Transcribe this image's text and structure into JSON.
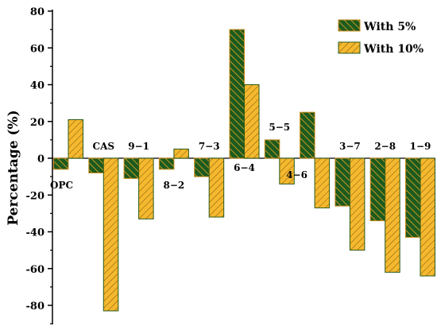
{
  "chart_data": {
    "type": "bar",
    "ylabel": "Percentage (%)",
    "ylim": [
      -90,
      80
    ],
    "y_ticks": [
      -80,
      -60,
      -40,
      -20,
      0,
      20,
      40,
      60,
      80
    ],
    "grid": false,
    "legend_position": "top-right",
    "categories": [
      "OPC",
      "CAS",
      "9-1",
      "8-2",
      "7-3",
      "6-4",
      "5-5",
      "4-6",
      "3-7",
      "2-8",
      "1-9"
    ],
    "series": [
      {
        "name": "With 5%",
        "color": "#1d5a1d",
        "hatch_color": "#e8a82a",
        "values": [
          -6,
          -8,
          -11,
          -6,
          -10,
          70,
          10,
          25,
          -26,
          -34,
          -43
        ]
      },
      {
        "name": "With 10%",
        "color": "#f5b82e",
        "hatch_color": "#1d5a1d",
        "values": [
          21,
          -83,
          -33,
          5,
          -32,
          40,
          -14,
          -27,
          -50,
          -62,
          -64
        ]
      }
    ]
  }
}
